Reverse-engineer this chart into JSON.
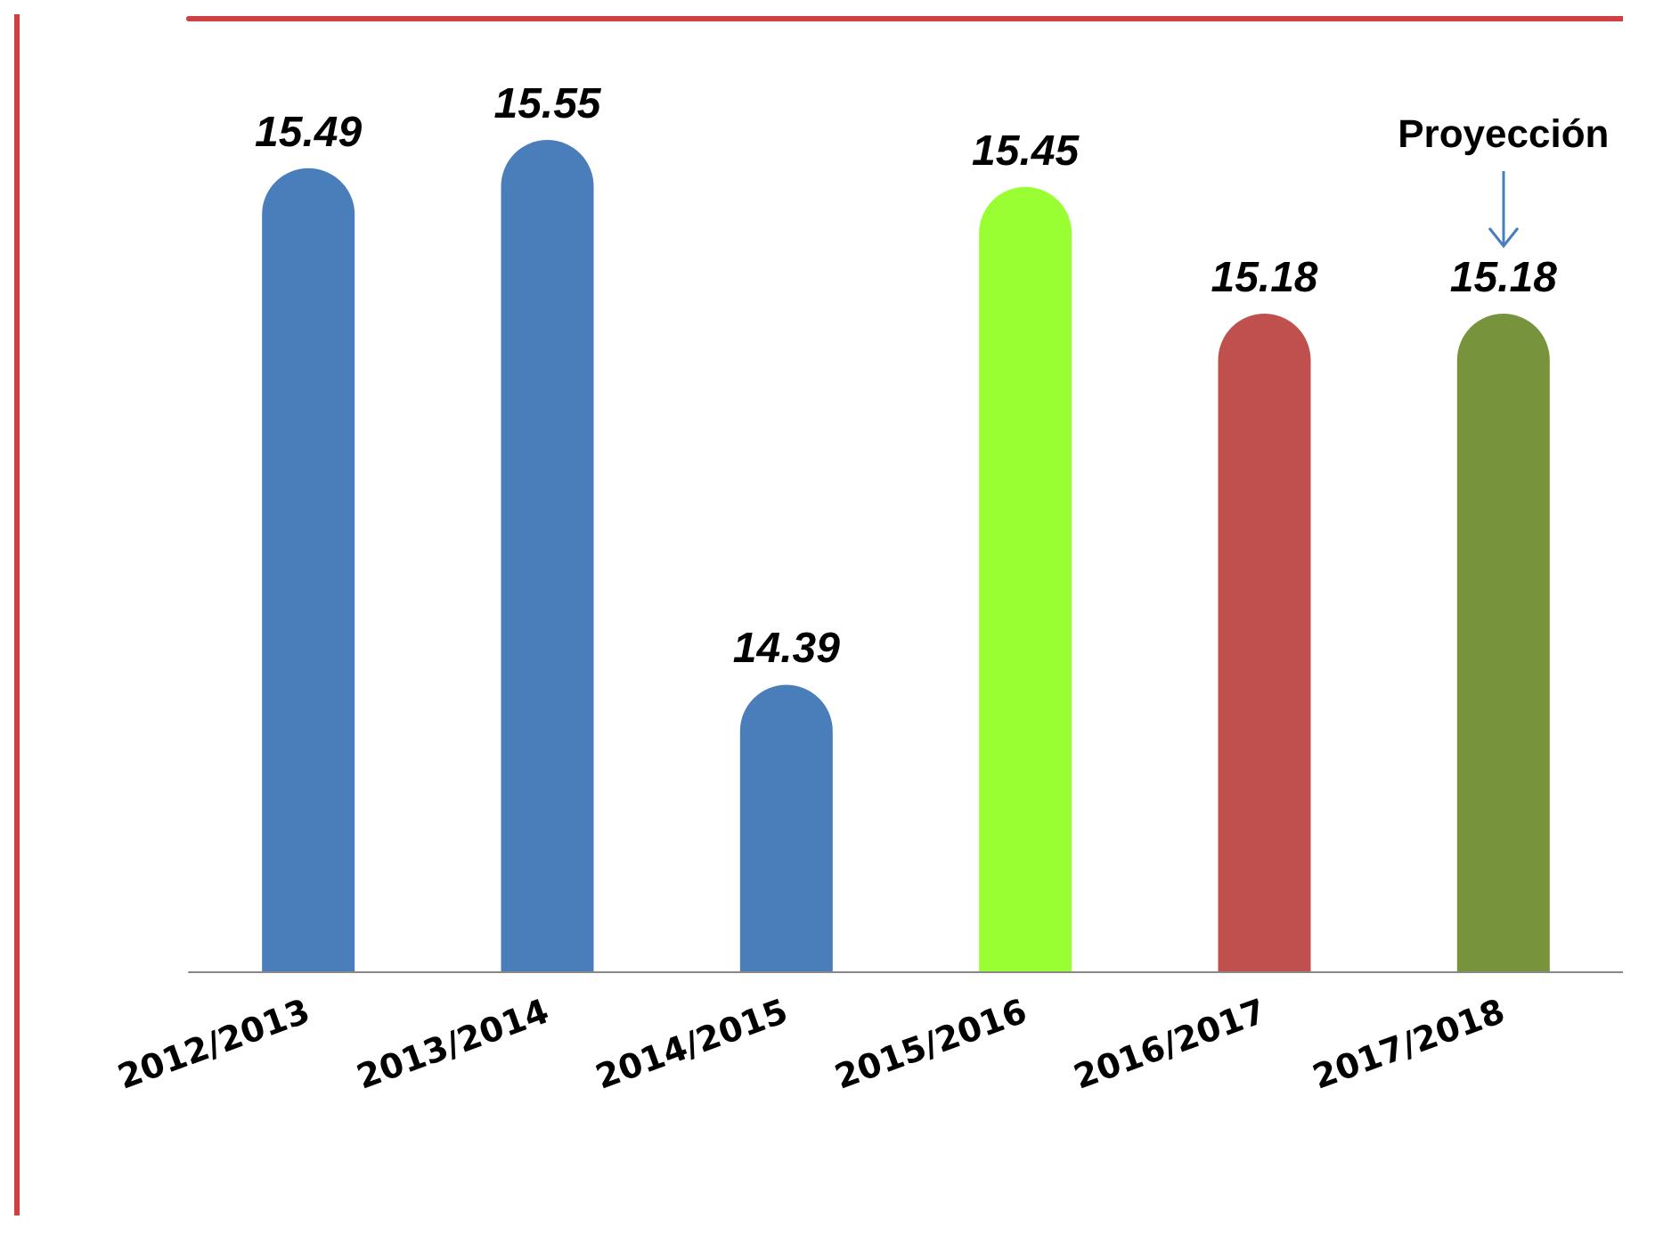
{
  "chart_data": {
    "type": "bar",
    "categories": [
      "2012/2013",
      "2013/2014",
      "2014/2015",
      "2015/2016",
      "2016/2017",
      "2017/2018"
    ],
    "values": [
      15.49,
      15.55,
      14.39,
      15.45,
      15.18,
      15.18
    ],
    "colors": [
      "#4a7ebb",
      "#4a7ebb",
      "#4a7ebb",
      "#99ff33",
      "#c0504d",
      "#77933c"
    ],
    "ylim": [
      13.78,
      15.81
    ],
    "tick_labels": "x",
    "data_labels": true,
    "annotations": [
      {
        "text": "Proyección",
        "x": "2017/2018"
      }
    ]
  }
}
